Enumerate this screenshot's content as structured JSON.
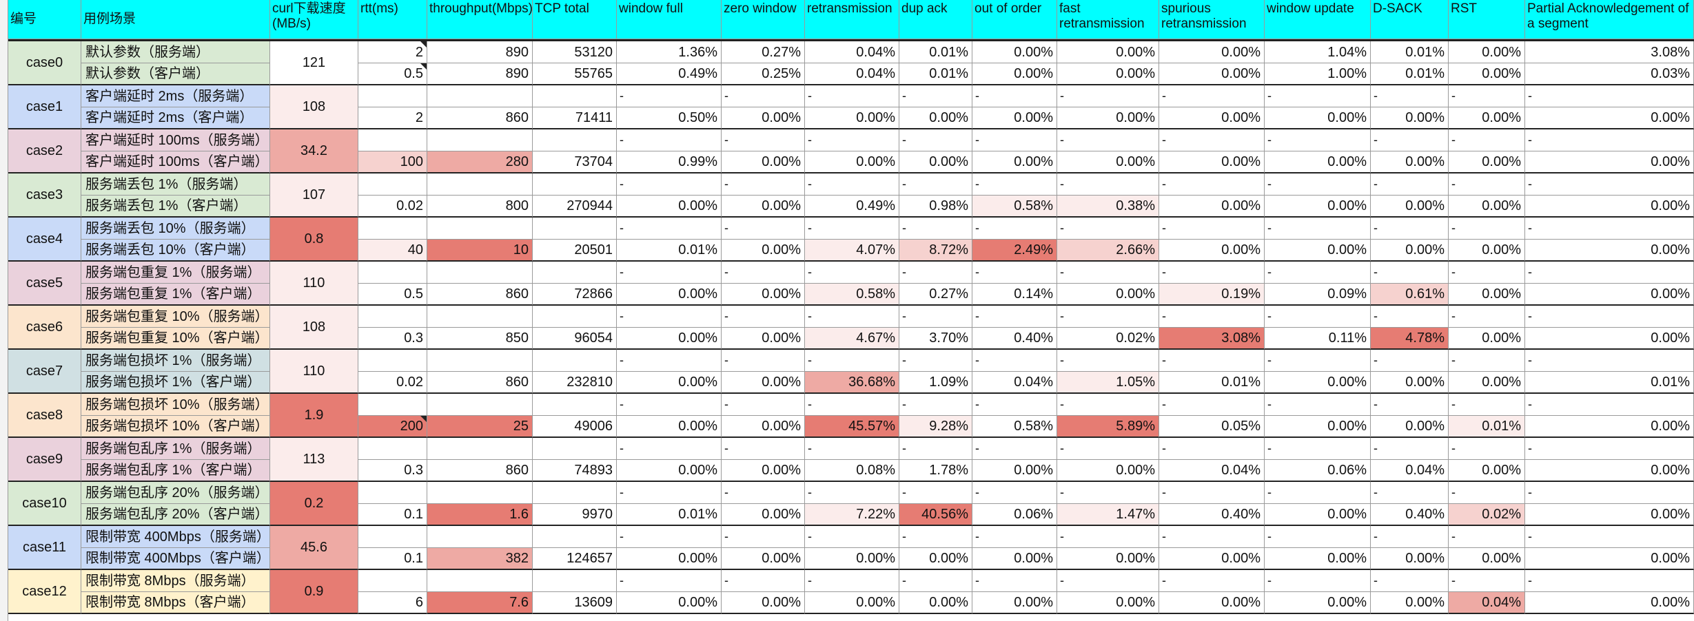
{
  "columns": [
    "编号",
    "用例场景",
    "curl下载速度(MB/s)",
    "rtt(ms)",
    "throughput(Mbps)",
    "TCP total",
    "window full",
    "zero window",
    "retransmission",
    "dup ack",
    "out of order",
    "fast retransmission",
    "spurious retransmission",
    "window update",
    "D-SACK",
    "RST",
    "Partial Acknowledgement of a segment"
  ],
  "colors": {
    "header": "#00ffff",
    "group_colors": [
      "#d9ead3",
      "#c9daf8",
      "#ead1dc",
      "#d9ead3",
      "#c9daf8",
      "#ead1dc",
      "#fce5cd",
      "#d0e0e3",
      "#fce5cd",
      "#ead1dc",
      "#d9ead3",
      "#c9daf8",
      "#fff2cc"
    ],
    "heat": {
      "0": "#ffffff",
      "1": "#fbeceb",
      "2": "#f6d2cf",
      "3": "#eeaaa4",
      "4": "#e67c73"
    }
  },
  "rows": [
    {
      "group": 0,
      "label": "默认参数（服务端）",
      "vals": [
        "2",
        "890",
        "53120",
        "1.36%",
        "0.27%",
        "0.04%",
        "0.01%",
        "0.00%",
        "0.00%",
        "0.00%",
        "1.04%",
        "0.01%",
        "0.00%",
        "3.08%"
      ]
    },
    {
      "group": 0,
      "label": "默认参数（客户端）",
      "vals": [
        "0.5",
        "890",
        "55765",
        "0.49%",
        "0.25%",
        "0.04%",
        "0.01%",
        "0.00%",
        "0.00%",
        "0.00%",
        "1.00%",
        "0.01%",
        "0.00%",
        "0.03%"
      ]
    },
    {
      "group": 1,
      "label": "客户端延时 2ms（服务端）",
      "vals": [
        "",
        "",
        "",
        "-",
        "-",
        "-",
        "-",
        "-",
        "-",
        "-",
        "-",
        "-",
        "-",
        "-"
      ]
    },
    {
      "group": 1,
      "label": "客户端延时 2ms（客户端）",
      "vals": [
        "2",
        "860",
        "71411",
        "0.50%",
        "0.00%",
        "0.00%",
        "0.00%",
        "0.00%",
        "0.00%",
        "0.00%",
        "0.00%",
        "0.00%",
        "0.00%",
        "0.00%"
      ]
    },
    {
      "group": 2,
      "label": "客户端延时 100ms（服务端）",
      "vals": [
        "",
        "",
        "",
        "-",
        "-",
        "-",
        "-",
        "-",
        "-",
        "-",
        "-",
        "-",
        "-",
        "-"
      ]
    },
    {
      "group": 2,
      "label": "客户端延时 100ms（客户端）",
      "vals": [
        "100",
        "280",
        "73704",
        "0.99%",
        "0.00%",
        "0.00%",
        "0.00%",
        "0.00%",
        "0.00%",
        "0.00%",
        "0.00%",
        "0.00%",
        "0.00%",
        "0.00%"
      ]
    },
    {
      "group": 3,
      "label": "服务端丢包 1%（服务端）",
      "vals": [
        "",
        "",
        "",
        "-",
        "-",
        "-",
        "-",
        "-",
        "-",
        "-",
        "-",
        "-",
        "-",
        "-"
      ]
    },
    {
      "group": 3,
      "label": "服务端丢包 1%（客户端）",
      "vals": [
        "0.02",
        "800",
        "270944",
        "0.00%",
        "0.00%",
        "0.49%",
        "0.98%",
        "0.58%",
        "0.38%",
        "0.00%",
        "0.00%",
        "0.00%",
        "0.00%",
        "0.00%"
      ]
    },
    {
      "group": 4,
      "label": "服务端丢包 10%（服务端）",
      "vals": [
        "",
        "",
        "",
        "-",
        "-",
        "-",
        "-",
        "-",
        "-",
        "-",
        "-",
        "-",
        "-",
        "-"
      ]
    },
    {
      "group": 4,
      "label": "服务端丢包 10%（客户端）",
      "vals": [
        "40",
        "10",
        "20501",
        "0.01%",
        "0.00%",
        "4.07%",
        "8.72%",
        "2.49%",
        "2.66%",
        "0.00%",
        "0.00%",
        "0.00%",
        "0.00%",
        "0.00%"
      ]
    },
    {
      "group": 5,
      "label": "服务端包重复 1%（服务端）",
      "vals": [
        "",
        "",
        "",
        "-",
        "-",
        "-",
        "-",
        "-",
        "-",
        "-",
        "-",
        "-",
        "-",
        "-"
      ]
    },
    {
      "group": 5,
      "label": "服务端包重复 1%（客户端）",
      "vals": [
        "0.5",
        "860",
        "72866",
        "0.00%",
        "0.00%",
        "0.58%",
        "0.27%",
        "0.14%",
        "0.00%",
        "0.19%",
        "0.09%",
        "0.61%",
        "0.00%",
        "0.00%"
      ]
    },
    {
      "group": 6,
      "label": "服务端包重复 10%（服务端）",
      "vals": [
        "",
        "",
        "",
        "-",
        "-",
        "-",
        "-",
        "-",
        "-",
        "-",
        "-",
        "-",
        "-",
        "-"
      ]
    },
    {
      "group": 6,
      "label": "服务端包重复 10%（客户端）",
      "vals": [
        "0.3",
        "850",
        "96054",
        "0.00%",
        "0.00%",
        "4.67%",
        "3.70%",
        "0.40%",
        "0.02%",
        "3.08%",
        "0.11%",
        "4.78%",
        "0.00%",
        "0.00%"
      ]
    },
    {
      "group": 7,
      "label": "服务端包损坏 1%（服务端）",
      "vals": [
        "",
        "",
        "",
        "-",
        "-",
        "-",
        "-",
        "-",
        "-",
        "-",
        "-",
        "-",
        "-",
        "-"
      ]
    },
    {
      "group": 7,
      "label": "服务端包损坏 1%（客户端）",
      "vals": [
        "0.02",
        "860",
        "232810",
        "0.00%",
        "0.00%",
        "36.68%",
        "1.09%",
        "0.04%",
        "1.05%",
        "0.01%",
        "0.00%",
        "0.00%",
        "0.00%",
        "0.01%"
      ]
    },
    {
      "group": 8,
      "label": "服务端包损坏 10%（服务端）",
      "vals": [
        "",
        "",
        "",
        "-",
        "-",
        "-",
        "-",
        "-",
        "-",
        "-",
        "-",
        "-",
        "-",
        "-"
      ]
    },
    {
      "group": 8,
      "label": "服务端包损坏 10%（客户端）",
      "vals": [
        "200",
        "25",
        "49006",
        "0.00%",
        "0.00%",
        "45.57%",
        "9.28%",
        "0.58%",
        "5.89%",
        "0.05%",
        "0.00%",
        "0.00%",
        "0.01%",
        "0.00%"
      ]
    },
    {
      "group": 9,
      "label": "服务端包乱序 1%（服务端）",
      "vals": [
        "",
        "",
        "",
        "-",
        "-",
        "-",
        "-",
        "-",
        "-",
        "-",
        "-",
        "-",
        "-",
        "-"
      ]
    },
    {
      "group": 9,
      "label": "服务端包乱序 1%（客户端）",
      "vals": [
        "0.3",
        "860",
        "74893",
        "0.00%",
        "0.00%",
        "0.08%",
        "1.78%",
        "0.00%",
        "0.00%",
        "0.04%",
        "0.06%",
        "0.04%",
        "0.00%",
        "0.00%"
      ]
    },
    {
      "group": 10,
      "label": "服务端包乱序 20%（服务端）",
      "vals": [
        "",
        "",
        "",
        "-",
        "-",
        "-",
        "-",
        "-",
        "-",
        "-",
        "-",
        "-",
        "-",
        "-"
      ]
    },
    {
      "group": 10,
      "label": "服务端包乱序 20%（客户端）",
      "vals": [
        "0.1",
        "1.6",
        "9970",
        "0.01%",
        "0.00%",
        "7.22%",
        "40.56%",
        "0.06%",
        "1.47%",
        "0.40%",
        "0.00%",
        "0.40%",
        "0.02%",
        "0.00%"
      ]
    },
    {
      "group": 11,
      "label": "限制带宽 400Mbps（服务端）",
      "vals": [
        "",
        "",
        "",
        "-",
        "-",
        "-",
        "-",
        "-",
        "-",
        "-",
        "-",
        "-",
        "-",
        "-"
      ]
    },
    {
      "group": 11,
      "label": "限制带宽 400Mbps（客户端）",
      "vals": [
        "0.1",
        "382",
        "124657",
        "0.00%",
        "0.00%",
        "0.00%",
        "0.00%",
        "0.00%",
        "0.00%",
        "0.00%",
        "0.00%",
        "0.00%",
        "0.00%",
        "0.00%"
      ]
    },
    {
      "group": 12,
      "label": "限制带宽 8Mbps（服务端）",
      "vals": [
        "",
        "",
        "",
        "-",
        "-",
        "-",
        "-",
        "-",
        "-",
        "-",
        "-",
        "-",
        "-",
        "-"
      ]
    },
    {
      "group": 12,
      "label": "限制带宽 8Mbps（客户端）",
      "vals": [
        "6",
        "7.6",
        "13609",
        "0.00%",
        "0.00%",
        "0.00%",
        "0.00%",
        "0.00%",
        "0.00%",
        "0.00%",
        "0.00%",
        "0.00%",
        "0.04%",
        "0.00%"
      ]
    }
  ],
  "groups": [
    {
      "id": "case0",
      "speed": "121",
      "speed_heat": 0
    },
    {
      "id": "case1",
      "speed": "108",
      "speed_heat": 1
    },
    {
      "id": "case2",
      "speed": "34.2",
      "speed_heat": 3
    },
    {
      "id": "case3",
      "speed": "107",
      "speed_heat": 1
    },
    {
      "id": "case4",
      "speed": "0.8",
      "speed_heat": 4
    },
    {
      "id": "case5",
      "speed": "110",
      "speed_heat": 1
    },
    {
      "id": "case6",
      "speed": "108",
      "speed_heat": 1
    },
    {
      "id": "case7",
      "speed": "110",
      "speed_heat": 1
    },
    {
      "id": "case8",
      "speed": "1.9",
      "speed_heat": 4
    },
    {
      "id": "case9",
      "speed": "113",
      "speed_heat": 1
    },
    {
      "id": "case10",
      "speed": "0.2",
      "speed_heat": 4
    },
    {
      "id": "case11",
      "speed": "45.6",
      "speed_heat": 3
    },
    {
      "id": "case12",
      "speed": "0.9",
      "speed_heat": 4
    }
  ],
  "heat_cells": {
    "5": {
      "0": 2,
      "1": 3
    },
    "7": {
      "7": 1,
      "8": 1
    },
    "9": {
      "0": 1,
      "1": 4,
      "5": 1,
      "6": 2,
      "7": 4,
      "8": 2
    },
    "11": {
      "5": 1,
      "9": 1,
      "11": 2
    },
    "13": {
      "5": 1,
      "9": 4,
      "11": 4
    },
    "15": {
      "5": 3,
      "8": 1
    },
    "17": {
      "0": 4,
      "1": 4,
      "5": 4,
      "6": 1,
      "8": 4,
      "12": 1
    },
    "21": {
      "1": 4,
      "5": 1,
      "6": 4,
      "8": 1,
      "12": 2
    },
    "23": {
      "1": 3
    },
    "25": {
      "1": 4,
      "12": 3
    }
  }
}
